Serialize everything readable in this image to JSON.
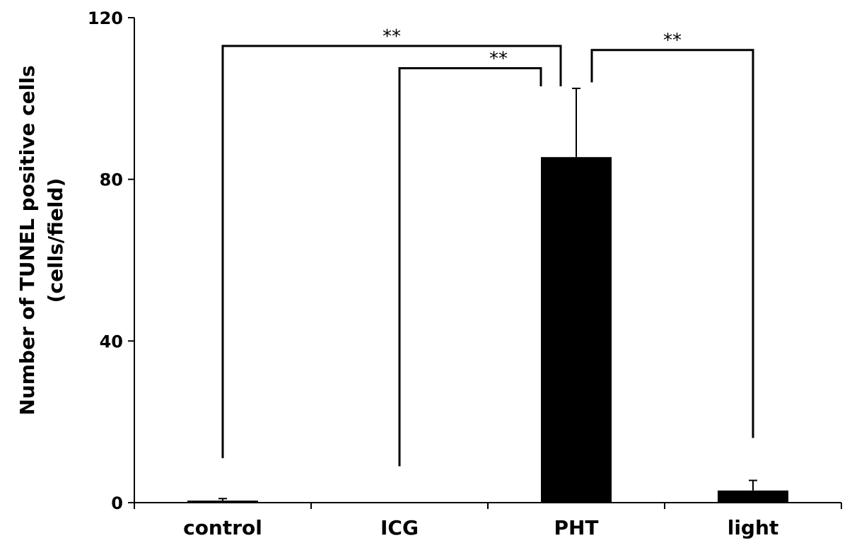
{
  "chart_data": {
    "type": "bar",
    "categories": [
      "control",
      "ICG",
      "PHT",
      "light"
    ],
    "values": [
      0.5,
      0,
      85.5,
      3
    ],
    "errors": [
      0.5,
      0,
      17,
      2.5
    ],
    "ylabel_lines": [
      "Number of TUNEL positive cells",
      "(cells/field)"
    ],
    "ylim": [
      0,
      120
    ],
    "yticks": [
      0,
      40,
      80,
      120
    ],
    "bar_color": "#000000",
    "significance": [
      {
        "from": "control",
        "to": "PHT",
        "label": "**",
        "left_bottom": 11,
        "right_bottom": 103,
        "top": 113
      },
      {
        "from": "ICG",
        "to": "PHT",
        "label": "**",
        "left_bottom": 9,
        "right_bottom": 103,
        "top": 107.5
      },
      {
        "from": "PHT",
        "to": "light",
        "label": "**",
        "left_bottom": 104,
        "right_bottom": 16,
        "top": 112
      }
    ]
  }
}
